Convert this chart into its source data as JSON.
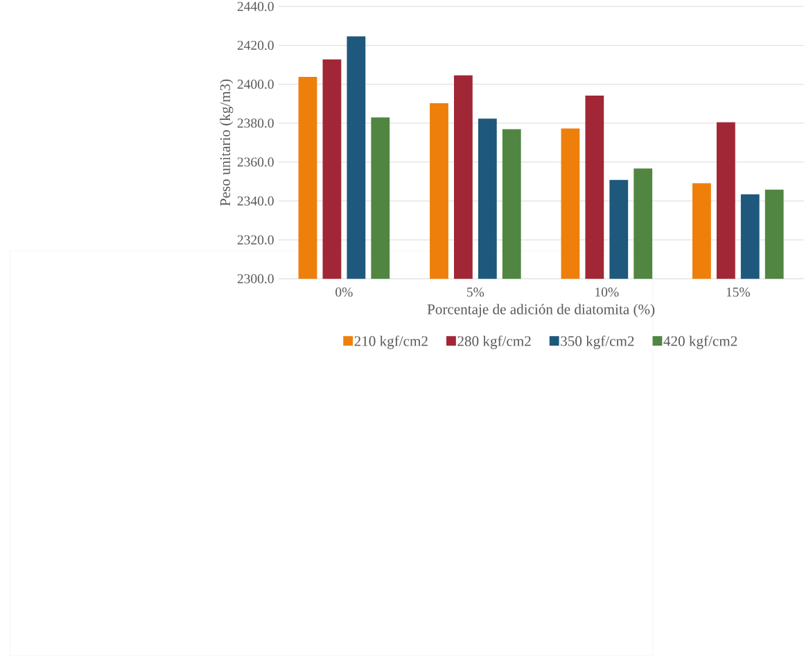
{
  "chart_data": {
    "type": "bar",
    "xlabel": "Porcentaje de adición de diatomita (%)",
    "ylabel": "Peso unitario (kg/m3)",
    "categories": [
      "0%",
      "5%",
      "10%",
      "15%"
    ],
    "series": [
      {
        "name": "210 kgf/cm2",
        "color": "#ee7f0b",
        "values": [
          2403.8,
          2390.3,
          2377.3,
          2349.1
        ]
      },
      {
        "name": "280 kgf/cm2",
        "color": "#a12736",
        "values": [
          2412.8,
          2404.6,
          2394.2,
          2380.5
        ]
      },
      {
        "name": "350 kgf/cm2",
        "color": "#1e587c",
        "values": [
          2424.6,
          2382.3,
          2350.8,
          2343.4
        ]
      },
      {
        "name": "420 kgf/cm2",
        "color": "#508642",
        "values": [
          2383.0,
          2376.9,
          2356.7,
          2345.8
        ]
      }
    ],
    "ylim": [
      2300,
      2440
    ],
    "yticks": [
      {
        "value": 2300,
        "label": "2300.0"
      },
      {
        "value": 2320,
        "label": "2320.0"
      },
      {
        "value": 2340,
        "label": "2340.0"
      },
      {
        "value": 2360,
        "label": "2360.0"
      },
      {
        "value": 2380,
        "label": "2380.0"
      },
      {
        "value": 2400,
        "label": "2400.0"
      },
      {
        "value": 2420,
        "label": "2420.0"
      },
      {
        "value": 2440,
        "label": "2440.0"
      }
    ],
    "grid": "y",
    "legend": "bottom"
  }
}
